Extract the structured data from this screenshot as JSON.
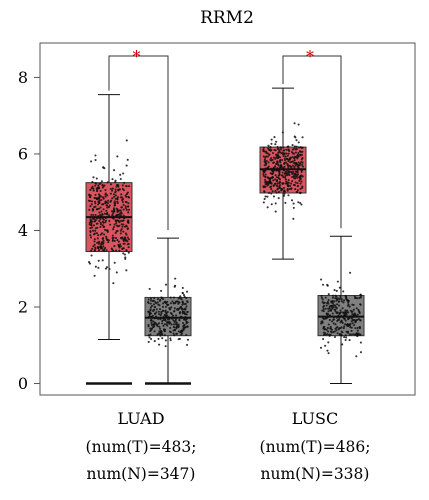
{
  "chart_data": {
    "type": "box",
    "title": "RRM2",
    "ylim": [
      -0.3,
      8.9
    ],
    "yticks": [
      0,
      2,
      4,
      6,
      8
    ],
    "groups": [
      {
        "label": "LUAD",
        "sublabel_1": "(num(T)=483;",
        "sublabel_2": "num(N)=347)",
        "significance": "*",
        "tumor": {
          "min": 1.15,
          "q1": 3.45,
          "median": 4.35,
          "q3": 5.25,
          "max": 7.55,
          "n": 483,
          "zero_outliers": 10
        },
        "normal": {
          "min": 0.0,
          "q1": 1.25,
          "median": 1.72,
          "q3": 2.25,
          "max": 3.8,
          "n": 347,
          "zero_outliers": 15
        }
      },
      {
        "label": "LUSC",
        "sublabel_1": "(num(T)=486;",
        "sublabel_2": "num(N)=338)",
        "significance": "*",
        "tumor": {
          "min": 3.25,
          "q1": 4.98,
          "median": 5.6,
          "q3": 6.18,
          "max": 7.72,
          "n": 486,
          "zero_outliers": 0
        },
        "normal": {
          "min": 0.0,
          "q1": 1.25,
          "median": 1.75,
          "q3": 2.3,
          "max": 3.85,
          "n": 338,
          "zero_outliers": 0
        }
      }
    ],
    "colors": {
      "tumor": "#d9555f",
      "normal": "#808080",
      "significance": "#cc0000",
      "points": "#111111"
    }
  }
}
